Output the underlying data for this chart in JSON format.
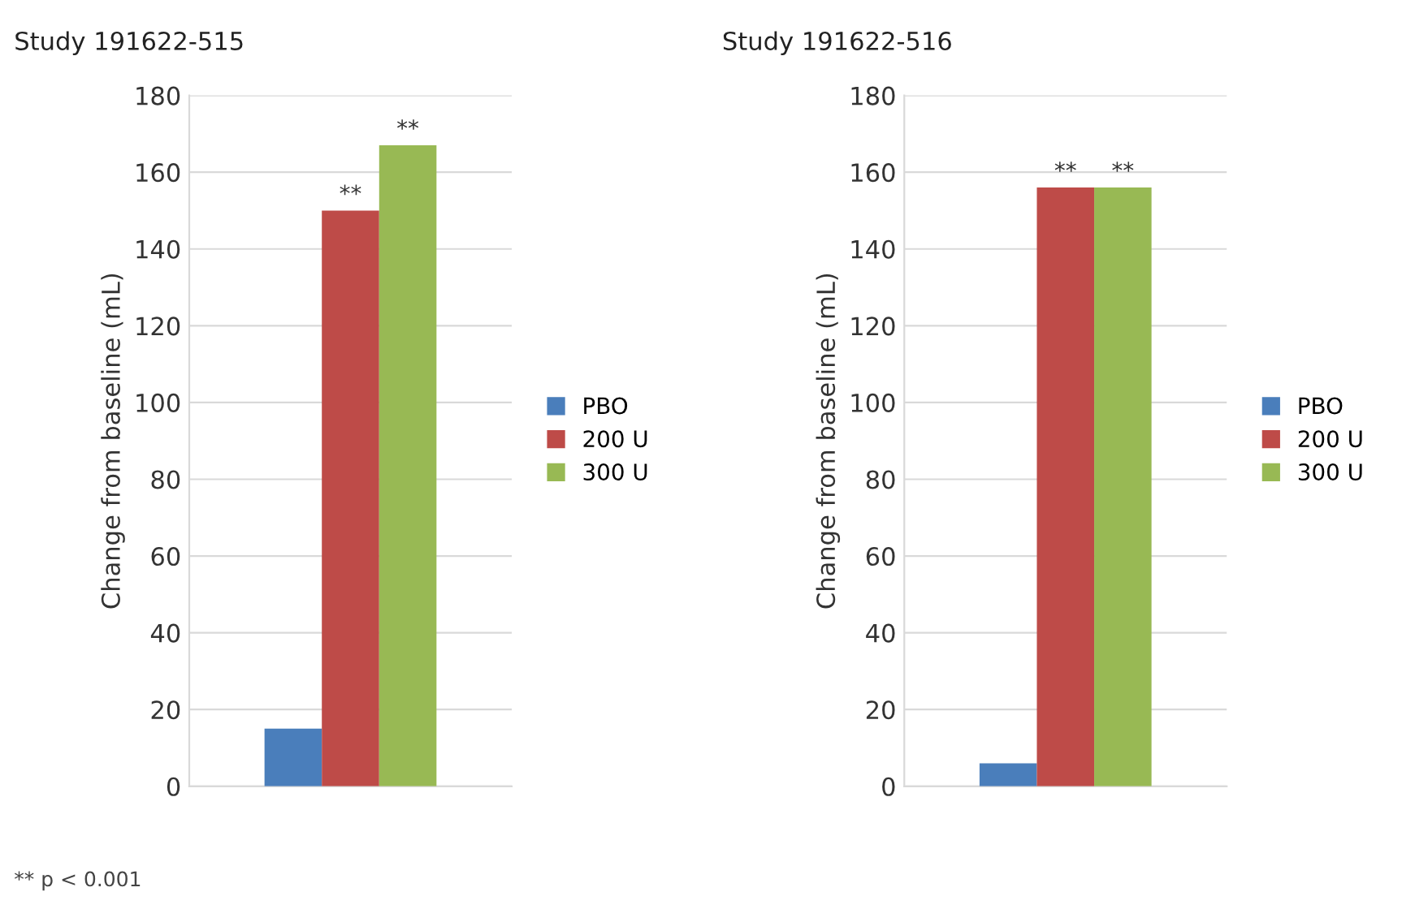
{
  "chart_data": [
    {
      "type": "bar",
      "title": "Study 191622-515",
      "ylabel": "Change from baseline (mL)",
      "categories": [
        null
      ],
      "series": [
        {
          "name": "PBO",
          "color": "#4a7ebb",
          "values": [
            15
          ]
        },
        {
          "name": "200 U",
          "color": "#be4b48",
          "values": [
            150
          ]
        },
        {
          "name": "300 U",
          "color": "#98b954",
          "values": [
            167
          ]
        }
      ],
      "ylim": [
        0,
        180
      ],
      "yticks": [
        0,
        20,
        40,
        60,
        80,
        100,
        120,
        140,
        160,
        180
      ],
      "grid": "y",
      "legend": "right",
      "annotations": [
        {
          "text": "**",
          "y": 150
        },
        {
          "text": "**",
          "y": 167
        },
        "** p < 0.001"
      ]
    },
    {
      "type": "bar",
      "title": "Study 191622-516",
      "ylabel": "Change from baseline (mL)",
      "categories": [
        null
      ],
      "series": [
        {
          "name": "PBO",
          "color": "#4a7ebb",
          "values": [
            6
          ]
        },
        {
          "name": "200 U",
          "color": "#be4b48",
          "values": [
            156
          ]
        },
        {
          "name": "300 U",
          "color": "#98b954",
          "values": [
            156
          ]
        }
      ],
      "ylim": [
        0,
        180
      ],
      "yticks": [
        0,
        20,
        40,
        60,
        80,
        100,
        120,
        140,
        160,
        180
      ],
      "grid": "y",
      "legend": "right",
      "annotations": [
        {
          "text": "**",
          "y": 156
        },
        {
          "text": "**",
          "y": 156
        }
      ]
    }
  ]
}
